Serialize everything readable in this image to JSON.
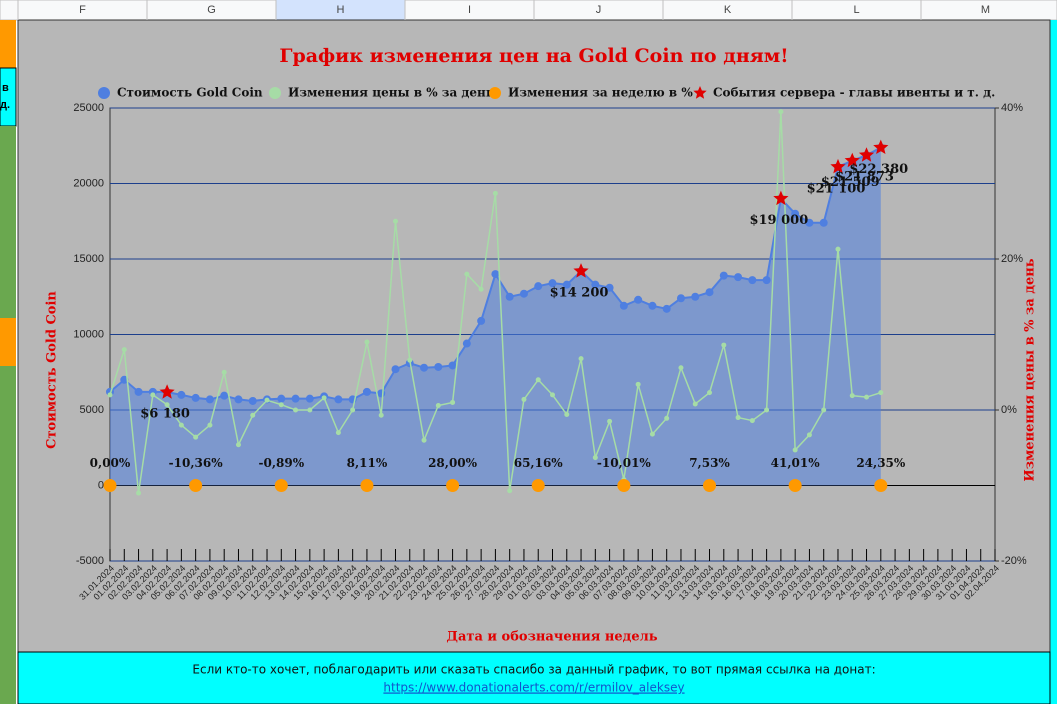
{
  "sheet": {
    "columns": [
      "F",
      "G",
      "H",
      "I",
      "J",
      "K",
      "L",
      "M"
    ],
    "left_fragments": [
      "в",
      "д."
    ]
  },
  "footer": {
    "text": "Если кто-то хочет, поблагодарить или сказать спасибо за данный график, то вот прямая ссылка на донат:",
    "link": "https://www.donationalerts.com/r/ermilov_aleksey"
  },
  "chart_data": {
    "type": "line",
    "title": "График изменения цен на Gold Coin по дням!",
    "y_label": "Стоимость Gold Coin",
    "y2_label": "Изменения цены в % за день",
    "x_label": "Дата и обозначения недель",
    "categories": [
      "31.01.2024",
      "01.02.2024",
      "02.02.2024",
      "03.02.2024",
      "04.02.2024",
      "05.02.2024",
      "06.02.2024",
      "07.02.2024",
      "08.02.2024",
      "09.02.2024",
      "10.02.2024",
      "11.02.2024",
      "12.02.2024",
      "13.02.2024",
      "14.02.2024",
      "15.02.2024",
      "16.02.2024",
      "17.02.2024",
      "18.02.2024",
      "19.02.2024",
      "20.02.2024",
      "21.02.2024",
      "22.02.2024",
      "23.02.2024",
      "24.02.2024",
      "25.02.2024",
      "26.02.2024",
      "27.02.2024",
      "28.02.2024",
      "29.02.2024",
      "01.03.2024",
      "02.03.2024",
      "03.03.2024",
      "04.03.2024",
      "05.03.2024",
      "06.03.2024",
      "07.03.2024",
      "08.03.2024",
      "09.03.2024",
      "10.03.2024",
      "11.03.2024",
      "12.03.2024",
      "13.03.2024",
      "14.03.2024",
      "15.03.2024",
      "16.03.2024",
      "17.03.2024",
      "18.03.2024",
      "19.03.2024",
      "20.03.2024",
      "21.03.2024",
      "22.03.2024",
      "23.03.2024",
      "24.03.2024",
      "25.03.2024",
      "26.03.2024",
      "27.03.2024",
      "28.03.2024",
      "29.03.2024",
      "30.03.2024",
      "31.03.2024",
      "01.04.2024",
      "02.04.2024"
    ],
    "ylim": [
      -5000,
      25000
    ],
    "yticks": [
      -5000,
      0,
      5000,
      10000,
      15000,
      20000,
      25000
    ],
    "y2lim": [
      -20,
      40
    ],
    "y2ticks": [
      {
        "value": -20,
        "label": "-20%"
      },
      {
        "value": 0,
        "label": "0%"
      },
      {
        "value": 20,
        "label": "20%"
      },
      {
        "value": 40,
        "label": "40%"
      }
    ],
    "grid": true,
    "series": [
      {
        "name": "Стоимость Gold Coin",
        "color": "#4f7fe0",
        "type": "area",
        "values": [
          6200,
          7000,
          6200,
          6200,
          6180,
          6000,
          5800,
          5700,
          5950,
          5700,
          5600,
          5700,
          5750,
          5750,
          5750,
          5900,
          5700,
          5700,
          6200,
          6100,
          7700,
          8100,
          7800,
          7850,
          7950,
          9400,
          10900,
          14000,
          12500,
          12700,
          13200,
          13400,
          13300,
          14200,
          13300,
          13100,
          11900,
          12300,
          11900,
          11700,
          12400,
          12500,
          12800,
          13900,
          13800,
          13600,
          13600,
          19000,
          18000,
          17400,
          17400,
          21100,
          21509,
          21873,
          22380,
          null,
          null,
          null,
          null,
          null,
          null,
          null,
          null
        ]
      },
      {
        "name": "Изменения цены в % за день",
        "color": "#a6dca6",
        "type": "line",
        "axis": "y2",
        "values": [
          2,
          8,
          -11,
          2,
          0.7,
          -2,
          -3.6,
          -2,
          5,
          -4.6,
          -0.7,
          1.3,
          0.7,
          0,
          0,
          1.6,
          -3,
          0,
          9,
          -0.7,
          25,
          6.6,
          -4,
          0.6,
          1,
          18,
          16,
          28.7,
          -10.7,
          1.4,
          4,
          2,
          -0.6,
          6.8,
          -6.3,
          -1.5,
          -9.2,
          3.4,
          -3.2,
          -1.1,
          5.6,
          0.8,
          2.3,
          8.6,
          -1,
          -1.4,
          0,
          39.5,
          -5.3,
          -3.3,
          0,
          21.3,
          1.9,
          1.7,
          2.3,
          null,
          null,
          null,
          null,
          null,
          null,
          null,
          null
        ]
      },
      {
        "name": "Изменения за неделю в %",
        "color": "#ff9900",
        "type": "marker",
        "values": [
          0,
          null,
          null,
          null,
          null,
          null,
          -10.36,
          null,
          null,
          null,
          null,
          null,
          -0.89,
          null,
          null,
          null,
          null,
          null,
          8.11,
          null,
          null,
          null,
          null,
          null,
          28,
          null,
          null,
          null,
          null,
          null,
          65.16,
          null,
          null,
          null,
          null,
          null,
          -10.01,
          null,
          null,
          null,
          null,
          null,
          7.53,
          null,
          null,
          null,
          null,
          null,
          41.01,
          null,
          null,
          null,
          null,
          null,
          24.35,
          null,
          null,
          null,
          null,
          null,
          null,
          null,
          null
        ],
        "value_labels": [
          "0,00%",
          null,
          null,
          null,
          null,
          null,
          "-10,36%",
          null,
          null,
          null,
          null,
          null,
          "-0,89%",
          null,
          null,
          null,
          null,
          null,
          "8,11%",
          null,
          null,
          null,
          null,
          null,
          "28,00%",
          null,
          null,
          null,
          null,
          null,
          "65,16%",
          null,
          null,
          null,
          null,
          null,
          "-10,01%",
          null,
          null,
          null,
          null,
          null,
          "7,53%",
          null,
          null,
          null,
          null,
          null,
          "41,01%",
          null,
          null,
          null,
          null,
          null,
          "24,35%",
          null,
          null,
          null,
          null,
          null,
          null,
          null,
          null
        ]
      },
      {
        "name": "События сервера - главы ивенты и т. д.",
        "color": "#e00000",
        "type": "star",
        "values": [
          null,
          null,
          null,
          null,
          6180,
          null,
          null,
          null,
          null,
          null,
          null,
          null,
          null,
          null,
          null,
          null,
          null,
          null,
          null,
          null,
          null,
          null,
          null,
          null,
          null,
          null,
          null,
          null,
          null,
          null,
          null,
          null,
          null,
          14200,
          null,
          null,
          null,
          null,
          null,
          null,
          null,
          null,
          null,
          null,
          null,
          null,
          null,
          19000,
          null,
          null,
          null,
          21100,
          21509,
          21873,
          22380,
          null,
          null,
          null,
          null,
          null,
          null,
          null,
          null
        ],
        "value_labels": [
          null,
          null,
          null,
          null,
          "$6 180",
          null,
          null,
          null,
          null,
          null,
          null,
          null,
          null,
          null,
          null,
          null,
          null,
          null,
          null,
          null,
          null,
          null,
          null,
          null,
          null,
          null,
          null,
          null,
          null,
          null,
          null,
          null,
          null,
          "$14 200",
          null,
          null,
          null,
          null,
          null,
          null,
          null,
          null,
          null,
          null,
          null,
          null,
          null,
          "$19 000",
          null,
          null,
          null,
          "$21 100",
          "$21 509",
          "$21 873",
          "$22 380",
          null,
          null,
          null,
          null,
          null,
          null,
          null,
          null
        ]
      }
    ]
  }
}
